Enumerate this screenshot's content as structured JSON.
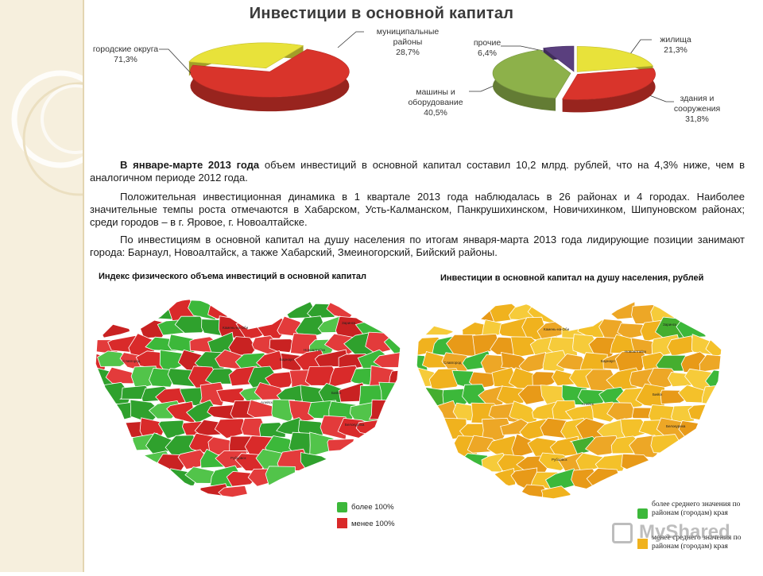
{
  "title": "Инвестиции в основной капитал",
  "chart_data": [
    {
      "type": "pie",
      "categories": [
        "городские округа",
        "муниципальные районы"
      ],
      "values": [
        71.3,
        28.7
      ],
      "value_labels": [
        "71,3%",
        "28,7%"
      ],
      "colors": [
        "#d9342b",
        "#e8e23a"
      ]
    },
    {
      "type": "pie",
      "categories": [
        "жилища",
        "здания и сооружения",
        "машины и оборудование",
        "прочие"
      ],
      "values": [
        21.3,
        31.8,
        40.5,
        6.4
      ],
      "value_labels": [
        "21,3%",
        "31,8%",
        "40,5%",
        "6,4%"
      ],
      "colors": [
        "#e8e23a",
        "#d9342b",
        "#8db14a",
        "#5a3f7e"
      ]
    }
  ],
  "paragraph1": {
    "bold": "В январе-марте 2013 года",
    "text": " объем инвестиций в основной капитал составил 10,2 млрд. рублей, что на 4,3% ниже, чем в аналогичном периоде 2012 года."
  },
  "paragraph2": "Положительная инвестиционная динамика в 1 квартале 2013 года наблюдалась в 26 районах и 4 городах. Наиболее значительные темпы роста отмечаются в Хабарском, Усть-Калманском, Панкрушихинском, Новичихинком, Шипуновском районах; среди городов – в г. Яровое, г. Новоалтайске.",
  "paragraph3": "По инвестициям в основной капитал на душу населения по итогам января-марта 2013 года лидирующие позиции занимают города: Барнаул, Новоалтайск, а также Хабарский, Змеиногорский, Бийский районы.",
  "map_left": {
    "title": "Индекс физического объема инвестиций в основной капитал",
    "legend": [
      {
        "label": "более 100%",
        "color": "#3cb83a"
      },
      {
        "label": "менее 100%",
        "color": "#d92a2a"
      }
    ]
  },
  "map_right": {
    "title": "Инвестиции в основной капитал на душу населения, рублей",
    "legend": [
      {
        "label": "более среднего значения по районам (городам) края",
        "color": "#3cb83a"
      },
      {
        "label": "менее среднего значения по районам (городам) края",
        "color": "#f0b21e"
      }
    ]
  },
  "map_labels": [
    "Барнаул",
    "Рубцовск",
    "Бийск",
    "Камень-на-Оби",
    "Заринск",
    "Алейск",
    "Славгород",
    "Новоалтайск",
    "Белокуриха"
  ],
  "watermark": "MyShared"
}
